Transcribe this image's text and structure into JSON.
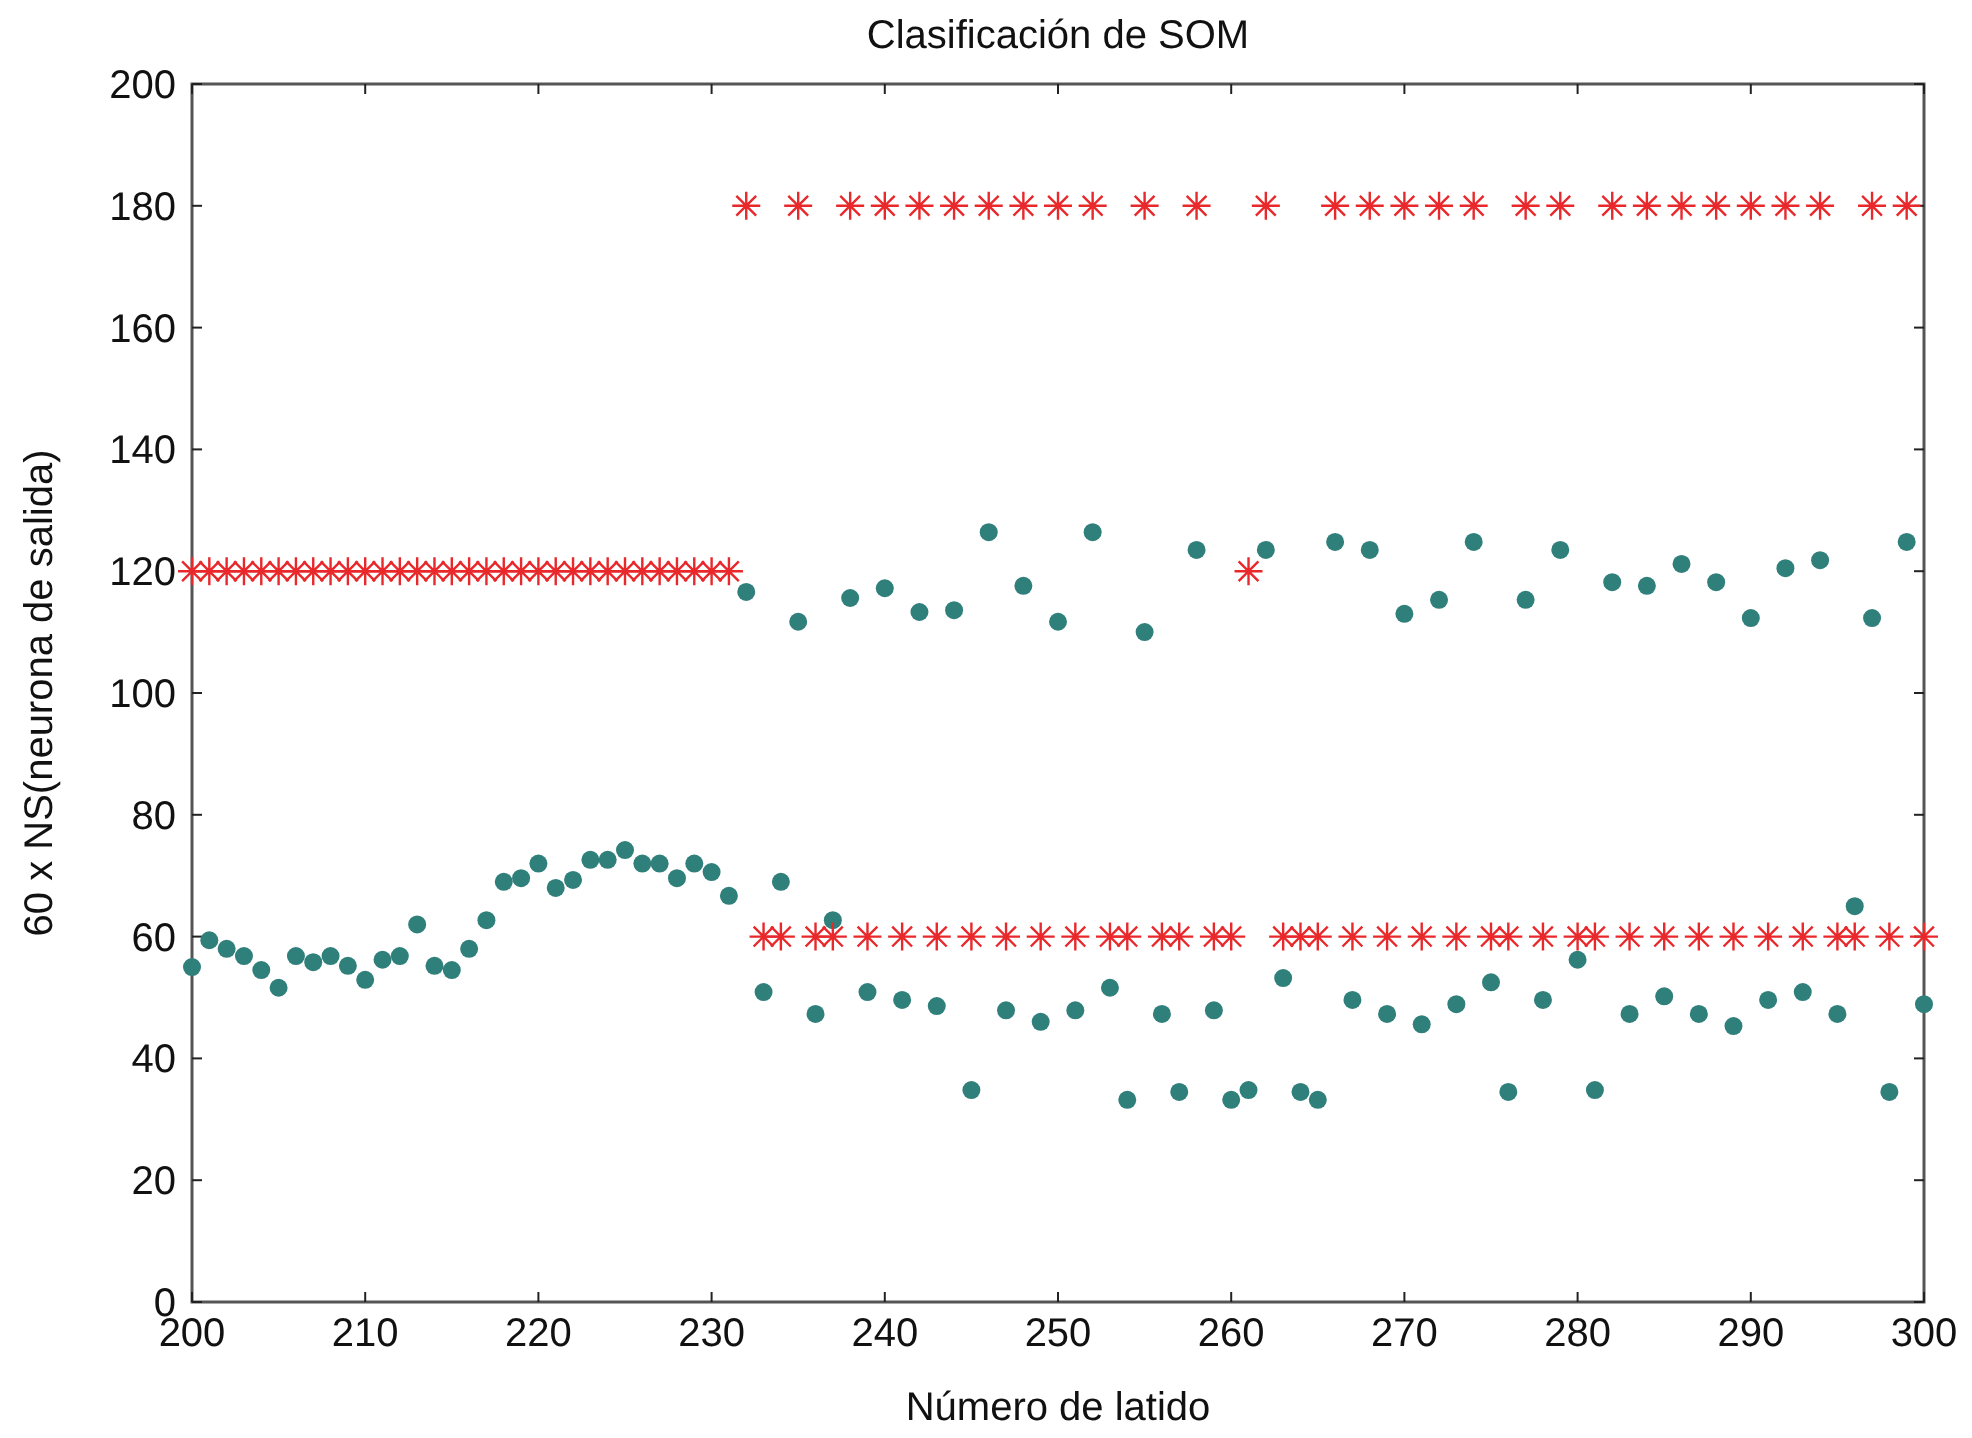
{
  "chart_data": {
    "type": "scatter",
    "title": "Clasificación de SOM",
    "xlabel": "Número de latido",
    "ylabel": "60 x NS(neurona de salida)",
    "x": [
      200,
      201,
      202,
      203,
      204,
      205,
      206,
      207,
      208,
      209,
      210,
      211,
      212,
      213,
      214,
      215,
      216,
      217,
      218,
      219,
      220,
      221,
      222,
      223,
      224,
      225,
      226,
      227,
      228,
      229,
      230,
      231,
      232,
      233,
      234,
      235,
      236,
      237,
      238,
      239,
      240,
      241,
      242,
      243,
      244,
      245,
      246,
      247,
      248,
      249,
      250,
      251,
      252,
      253,
      254,
      255,
      256,
      257,
      258,
      259,
      260,
      261,
      262,
      263,
      264,
      265,
      266,
      267,
      268,
      269,
      270,
      271,
      272,
      273,
      274,
      275,
      276,
      277,
      278,
      279,
      280,
      281,
      282,
      283,
      284,
      285,
      286,
      287,
      288,
      289,
      290,
      291,
      292,
      293,
      294,
      295,
      296,
      297,
      298,
      299,
      300
    ],
    "series": [
      {
        "color": "#2f7f7b",
        "marker": "circle",
        "values": [
          55,
          59.4,
          58,
          56.8,
          54.5,
          51.6,
          56.8,
          55.8,
          56.8,
          55.2,
          52.9,
          56.2,
          56.8,
          62,
          55.2,
          54.5,
          58,
          62.7,
          69,
          69.6,
          72,
          68,
          69.3,
          72.6,
          72.6,
          74.2,
          72,
          72,
          69.6,
          72,
          70.6,
          66.7,
          116.6,
          50.9,
          69,
          111.7,
          47.3,
          62.7,
          115.6,
          50.9,
          117.2,
          49.6,
          113.3,
          48.6,
          113.6,
          34.8,
          126.4,
          47.9,
          117.6,
          46,
          111.7,
          47.9,
          126.4,
          51.6,
          33.2,
          110,
          47.3,
          34.5,
          123.5,
          47.9,
          33.2,
          34.8,
          123.5,
          53.2,
          34.5,
          33.2,
          124.8,
          49.6,
          123.5,
          47.3,
          113,
          45.6,
          115.3,
          48.9,
          124.8,
          52.5,
          34.5,
          115.3,
          49.6,
          123.5,
          56.2,
          34.8,
          118.2,
          47.3,
          117.6,
          50.2,
          121.2,
          47.3,
          118.2,
          45.3,
          112.3,
          49.6,
          120.5,
          50.9,
          121.8,
          47.3,
          65,
          112.3,
          34.5,
          124.8,
          48.9
        ]
      },
      {
        "color": "#e8282b",
        "marker": "cross",
        "values": [
          120,
          120,
          120,
          120,
          120,
          120,
          120,
          120,
          120,
          120,
          120,
          120,
          120,
          120,
          120,
          120,
          120,
          120,
          120,
          120,
          120,
          120,
          120,
          120,
          120,
          120,
          120,
          120,
          120,
          120,
          120,
          120,
          180,
          60,
          60,
          180,
          60,
          60,
          180,
          60,
          180,
          60,
          180,
          60,
          180,
          60,
          180,
          60,
          180,
          60,
          180,
          60,
          180,
          60,
          60,
          180,
          60,
          60,
          180,
          60,
          60,
          120,
          180,
          60,
          60,
          60,
          180,
          60,
          180,
          60,
          180,
          60,
          180,
          60,
          180,
          60,
          60,
          180,
          60,
          180,
          60,
          60,
          180,
          60,
          180,
          60,
          180,
          60,
          180,
          60,
          180,
          60,
          180,
          60,
          180,
          60,
          60,
          180,
          60,
          180,
          60
        ]
      }
    ],
    "xlim": [
      200,
      300
    ],
    "xticks": [
      200,
      210,
      220,
      230,
      240,
      250,
      260,
      270,
      280,
      290,
      300
    ],
    "ylim": [
      0,
      200
    ],
    "yticks": [
      0,
      20,
      40,
      60,
      80,
      100,
      120,
      140,
      160,
      180,
      200
    ],
    "grid": false
  }
}
